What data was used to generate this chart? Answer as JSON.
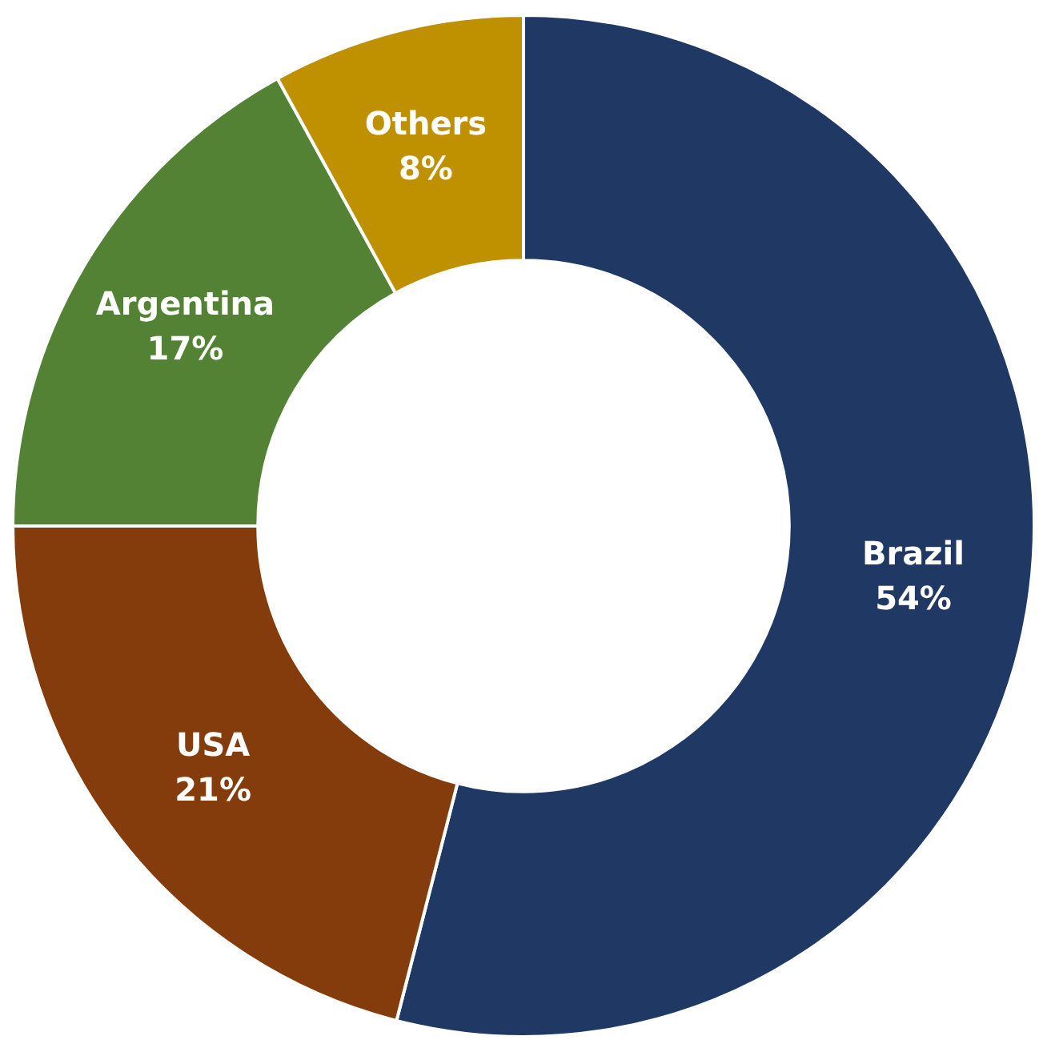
{
  "chart_data": {
    "type": "donut",
    "categories": [
      "Brazil",
      "USA",
      "Argentina",
      "Others"
    ],
    "values": [
      54,
      21,
      17,
      8
    ],
    "colors": [
      "#1f3864",
      "#843c0c",
      "#548235",
      "#bf9000"
    ],
    "value_labels": [
      "54%",
      "21%",
      "17%",
      "8%"
    ]
  }
}
